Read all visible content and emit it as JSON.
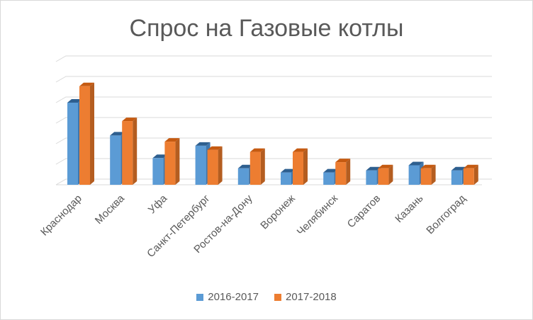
{
  "chart_data": {
    "type": "bar",
    "title": "Спрос на Газовые котлы",
    "categories": [
      "Краснодар",
      "Москва",
      "Уфа",
      "Санкт-Петербург",
      "Ростов-на-Дону",
      "Воронеж",
      "Челябинск",
      "Саратов",
      "Казань",
      "Волгоград"
    ],
    "series": [
      {
        "name": "2016-2017",
        "color": "#5b9bd5",
        "side_color": "#3f77ad",
        "top_color": "#2e5f8f",
        "values": [
          4.0,
          2.4,
          1.3,
          1.9,
          0.8,
          0.6,
          0.6,
          0.7,
          0.95,
          0.7
        ]
      },
      {
        "name": "2017-2018",
        "color": "#ed7d31",
        "side_color": "#b45d20",
        "top_color": "#c55a11",
        "values": [
          4.8,
          3.1,
          2.1,
          1.7,
          1.6,
          1.6,
          1.1,
          0.8,
          0.8,
          0.8
        ]
      }
    ],
    "ylim": [
      0,
      6
    ],
    "grid": true,
    "legend": "bottom"
  }
}
